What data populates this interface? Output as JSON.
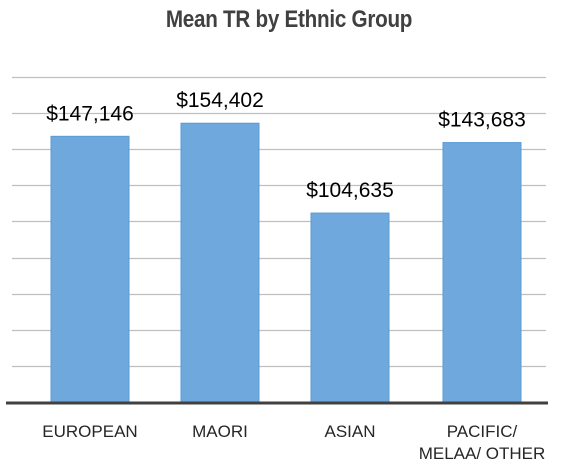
{
  "chart_data": {
    "type": "bar",
    "title": "Mean TR by Ethnic Group",
    "xlabel": "",
    "ylabel": "",
    "categories": [
      [
        "EUROPEAN"
      ],
      [
        "MAORI"
      ],
      [
        "ASIAN"
      ],
      [
        "PACIFIC/",
        "MELAA/ OTHER"
      ]
    ],
    "values": [
      147146,
      154402,
      104635,
      143683
    ],
    "data_labels": [
      "$147,146",
      "$154,402",
      "$104,635",
      "$143,683"
    ],
    "ylim": [
      0,
      180000
    ],
    "y_gridline_step": 20000,
    "y_tick_labels_shown": false,
    "grid": true,
    "legend": "none",
    "colors": {
      "bar": "#6fa8dc",
      "bar_edge": "#5b9bd5",
      "grid": "#bfbfbf",
      "axis": "#404040"
    }
  }
}
